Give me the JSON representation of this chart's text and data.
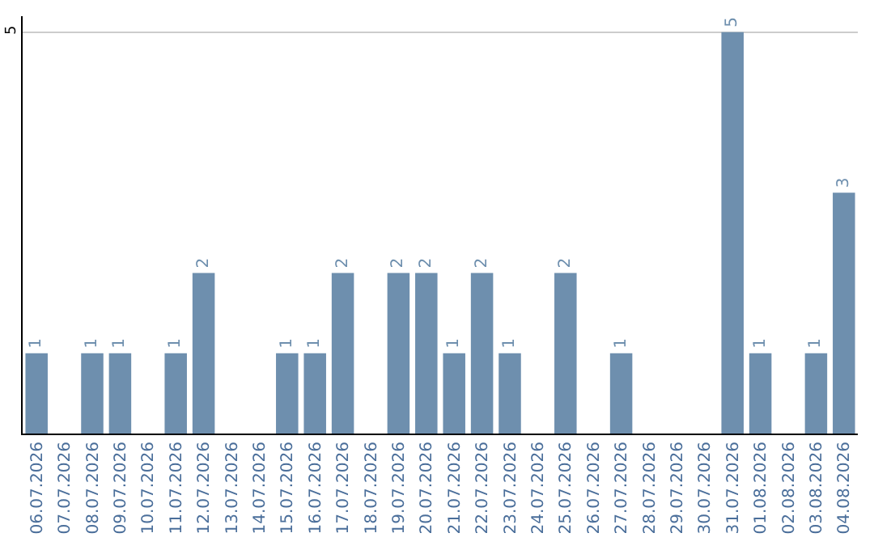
{
  "chart_data": {
    "type": "bar",
    "categories": [
      "06.07.2026",
      "07.07.2026",
      "08.07.2026",
      "09.07.2026",
      "10.07.2026",
      "11.07.2026",
      "12.07.2026",
      "13.07.2026",
      "14.07.2026",
      "15.07.2026",
      "16.07.2026",
      "17.07.2026",
      "18.07.2026",
      "19.07.2026",
      "20.07.2026",
      "21.07.2026",
      "22.07.2026",
      "23.07.2026",
      "24.07.2026",
      "25.07.2026",
      "26.07.2026",
      "27.07.2026",
      "28.07.2026",
      "29.07.2026",
      "30.07.2026",
      "31.07.2026",
      "01.08.2026",
      "02.08.2026",
      "03.08.2026",
      "04.08.2026"
    ],
    "values": [
      1,
      0,
      1,
      1,
      0,
      1,
      2,
      0,
      0,
      1,
      1,
      2,
      0,
      2,
      2,
      1,
      2,
      1,
      0,
      2,
      0,
      1,
      0,
      0,
      0,
      5,
      1,
      0,
      1,
      3
    ],
    "value_labels": [
      "1",
      null,
      "1",
      "1",
      null,
      "1",
      "2",
      null,
      null,
      "1",
      "1",
      "2",
      null,
      "2",
      "2",
      "1",
      "2",
      "1",
      null,
      "2",
      null,
      "1",
      null,
      null,
      null,
      "5",
      "1",
      null,
      "1",
      "3"
    ],
    "color": "#6e8fae",
    "ylim": [
      0,
      5.2
    ],
    "yticks": [
      5
    ],
    "grid": "y",
    "legend": false
  }
}
